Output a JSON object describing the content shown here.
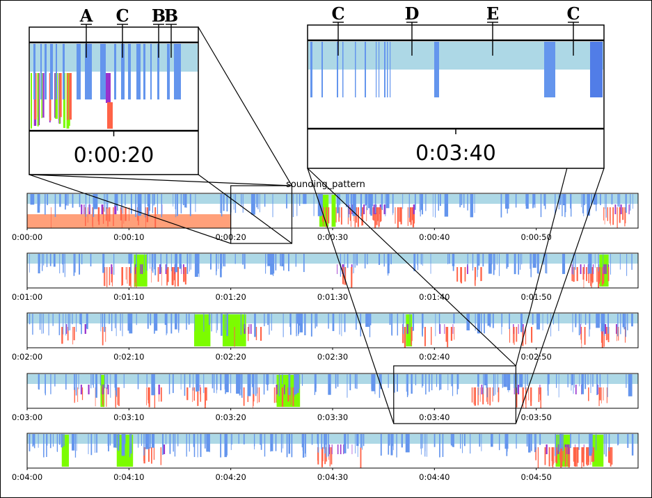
{
  "chart_data": {
    "type": "timeline",
    "title": "sounding_pattern",
    "rows": [
      {
        "start_label": "0:00:00",
        "tick_labels": [
          "0:00:00",
          "0:00:10",
          "0:00:20",
          "0:00:30",
          "0:00:40",
          "0:00:50"
        ]
      },
      {
        "start_label": "0:01:00",
        "tick_labels": [
          "0:01:00",
          "0:01:10",
          "0:01:20",
          "0:01:30",
          "0:01:40",
          "0:01:50"
        ]
      },
      {
        "start_label": "0:02:00",
        "tick_labels": [
          "0:02:00",
          "0:02:10",
          "0:02:20",
          "0:02:30",
          "0:02:40",
          "0:02:50"
        ]
      },
      {
        "start_label": "0:03:00",
        "tick_labels": [
          "0:03:00",
          "0:03:10",
          "0:03:20",
          "0:03:30",
          "0:03:40",
          "0:03:50"
        ]
      },
      {
        "start_label": "0:04:00",
        "tick_labels": [
          "0:04:00",
          "0:04:10",
          "0:04:20",
          "0:04:30",
          "0:04:40",
          "0:04:50"
        ]
      }
    ],
    "row_duration_seconds": 60,
    "series_colors": {
      "band": "#add8e6",
      "blue": "#6495ed",
      "purple": "#9932cc",
      "green": "#7cfc00",
      "red": "#ff6347",
      "salmon": "#ffa07a",
      "dark_blue": "#4169e1"
    },
    "insets": [
      {
        "label": "0:00:20",
        "source_row": 0,
        "source_start": 20,
        "source_end": 26,
        "annotations": [
          "A",
          "C",
          "B",
          "B"
        ]
      },
      {
        "label": "0:03:40",
        "source_row": 3,
        "source_start": 36,
        "source_end": 48,
        "annotations": [
          "C",
          "D",
          "E",
          "C"
        ]
      }
    ],
    "highlight_segments": {
      "row0_green": [
        [
          28.7,
          29.6
        ],
        [
          29.9,
          30.3
        ]
      ],
      "row1_green": [
        [
          10.5,
          11.8
        ],
        [
          56.2,
          57.1
        ]
      ],
      "row2_green": [
        [
          16.4,
          18
        ],
        [
          19.2,
          21.5
        ],
        [
          37.2,
          37.8
        ]
      ],
      "row3_green": [
        [
          7.2,
          7.6
        ],
        [
          24.5,
          26.8
        ]
      ],
      "row4_green": [
        [
          3.4,
          4.1
        ],
        [
          8.8,
          10.4
        ],
        [
          51.9,
          53.3
        ],
        [
          55.5,
          56.6
        ]
      ]
    }
  }
}
